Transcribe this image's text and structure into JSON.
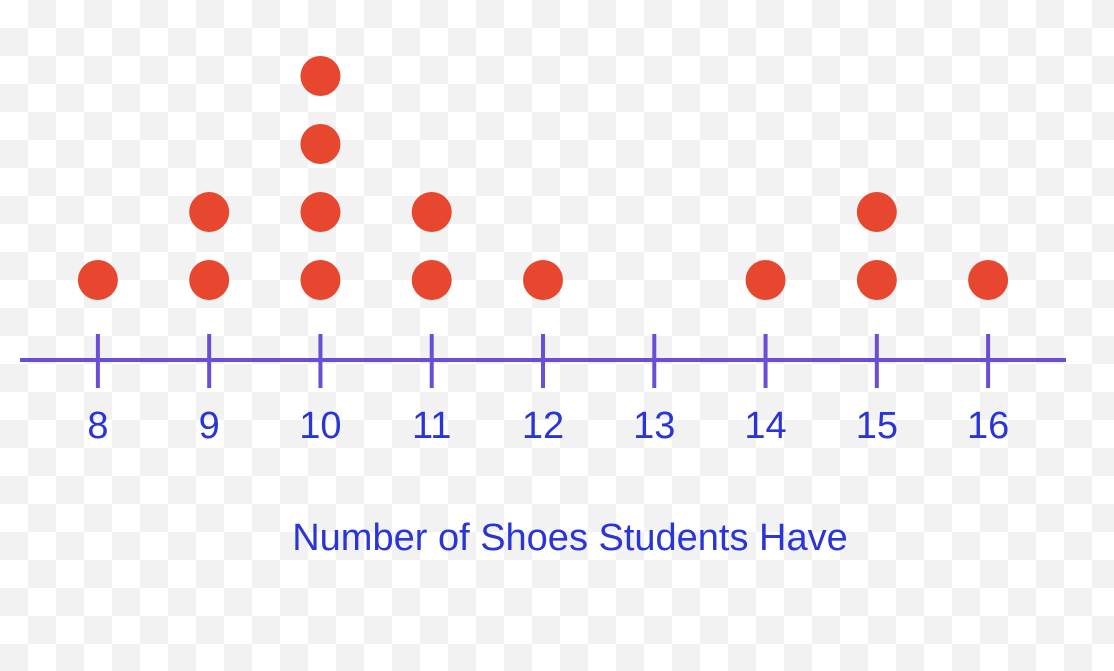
{
  "chart_data": {
    "type": "dot",
    "x": [
      8,
      9,
      10,
      11,
      12,
      13,
      14,
      15,
      16
    ],
    "values": [
      1,
      2,
      4,
      2,
      1,
      0,
      1,
      2,
      1
    ],
    "color": "#e8472f",
    "axis_color": "#6a4fd6",
    "xlim": [
      7.3,
      16.7
    ],
    "xticks": [
      8,
      9,
      10,
      11,
      12,
      13,
      14,
      15,
      16
    ],
    "xlabel": "Number of Shoes Students Have"
  }
}
